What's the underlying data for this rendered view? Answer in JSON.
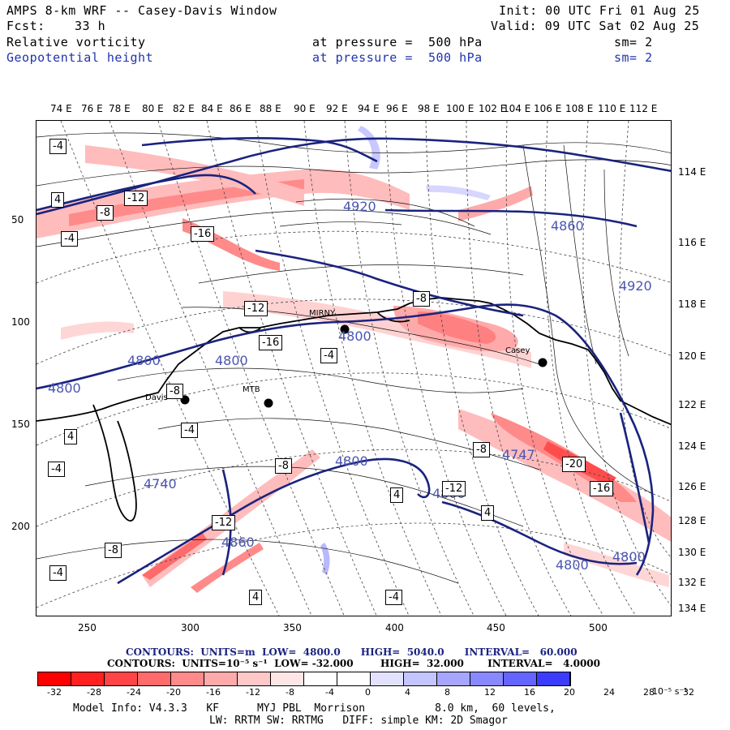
{
  "header": {
    "title": "AMPS 8-km WRF -- Casey-Davis Window",
    "init": "Init: 00 UTC Fri 01 Aug 25",
    "fcst_label": "Fcst:",
    "fcst_hours": "33 h",
    "valid": "Valid: 09 UTC Sat 02 Aug 25",
    "field1": "Relative vorticity",
    "field2": "Geopotential height",
    "pressure1": "at pressure =  500 hPa",
    "pressure2": "at pressure =  500 hPa",
    "sm1": "sm= 2",
    "sm2": "sm= 2"
  },
  "axes": {
    "top_longitudes": [
      "74 E",
      "76 E",
      "78 E",
      "80 E",
      "82 E",
      "84 E",
      "86 E",
      "88 E",
      "90 E",
      "92 E",
      "94 E",
      "96 E",
      "98 E",
      "100 E",
      "102 E",
      "104 E",
      "106 E",
      "108 E",
      "110 E",
      "112 E"
    ],
    "right_longitudes": [
      "114 E",
      "116 E",
      "118 E",
      "120 E",
      "122 E",
      "124 E",
      "126 E",
      "128 E",
      "130 E",
      "132 E",
      "134 E"
    ],
    "x_ticks": [
      "250",
      "300",
      "350",
      "400",
      "450",
      "500"
    ],
    "y_ticks": [
      "50",
      "100",
      "150",
      "200"
    ]
  },
  "map": {
    "station_labels": [
      "MIRNY",
      "Casey",
      "Davis",
      "MTB"
    ],
    "height_labels": [
      "4920",
      "4860",
      "4800",
      "4800",
      "4800",
      "4800",
      "4800",
      "4800",
      "4800",
      "4860",
      "4920",
      "4800"
    ],
    "low_labels": [
      "4747",
      "4740"
    ],
    "vort_boxes": [
      "-4",
      "4",
      "-4",
      "-8",
      "-12",
      "-16",
      "-20",
      "-16",
      "-12",
      "-8",
      "4",
      "-4",
      "-8",
      "-12",
      "-4",
      "-8",
      "4",
      "-4",
      "4",
      "-8",
      "-12",
      "-16",
      "-8",
      "-4",
      "4",
      "-4"
    ],
    "colors": {
      "contour_height": "#1a237e",
      "positive_vort": "#ff6666",
      "negative_vort": "#8888ff"
    }
  },
  "legend": {
    "line1": "CONTOURS:  UNITS=m  LOW=  4800.0      HIGH=  5040.0      INTERVAL=   60.000",
    "line2": "CONTOURS:  UNITS=10⁻⁵ s⁻¹  LOW= -32.000        HIGH=  32.000       INTERVAL=   4.0000",
    "colorbar_labels": [
      "-32",
      "-28",
      "-24",
      "-20",
      "-16",
      "-12",
      "-8",
      "-4",
      "0",
      "4",
      "8",
      "12",
      "16",
      "20",
      "24",
      "28",
      "32"
    ],
    "colorbar_unit": "10⁻⁵ s⁻¹",
    "colorbar_colors": [
      "#ff0000",
      "#ff2020",
      "#ff4545",
      "#ff6a6a",
      "#ff8a8a",
      "#ffaaaa",
      "#ffc8c8",
      "#ffe6e6",
      "#ffffff",
      "#ffffff",
      "#e2e2ff",
      "#c4c4ff",
      "#a6a6ff",
      "#8888ff",
      "#6464ff",
      "#3c3cff",
      "#1010ff"
    ]
  },
  "footer": {
    "line1": "Model Info: V4.3.3   KF      MYJ PBL  Morrison           8.0 km,  60 levels,",
    "line2": "LW: RRTM SW: RRTMG   DIFF: simple KM: 2D Smagor"
  }
}
